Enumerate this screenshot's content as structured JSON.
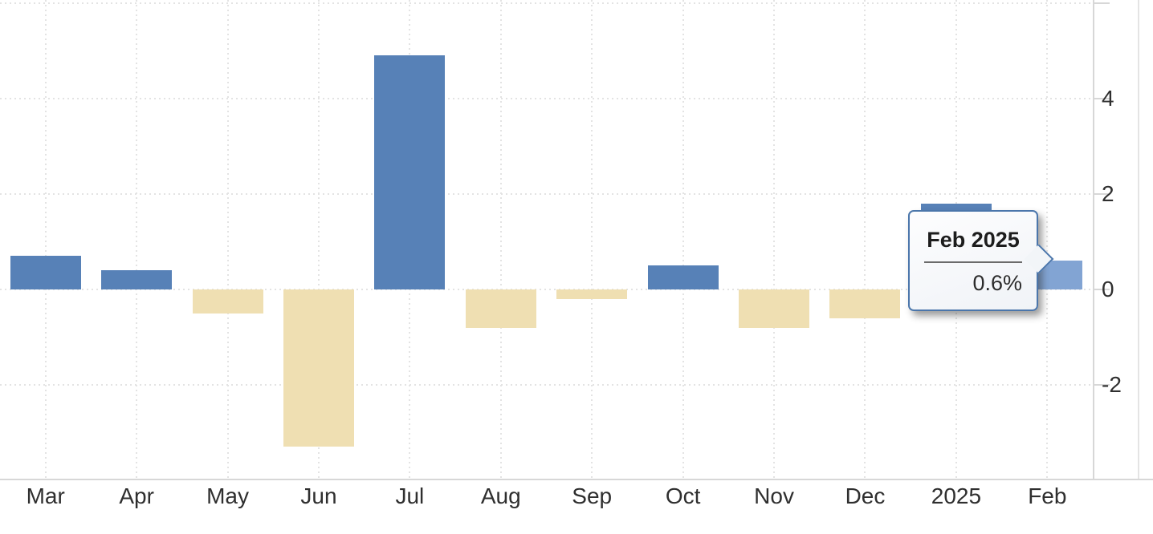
{
  "chart_data": {
    "type": "bar",
    "title": "",
    "xlabel": "",
    "ylabel": "",
    "categories": [
      "Mar",
      "Apr",
      "May",
      "Jun",
      "Jul",
      "Aug",
      "Sep",
      "Oct",
      "Nov",
      "Dec",
      "2025",
      "Feb"
    ],
    "values": [
      0.7,
      0.4,
      -0.5,
      -3.3,
      4.9,
      -0.8,
      -0.2,
      0.5,
      -0.8,
      -0.6,
      1.8,
      0.6
    ],
    "value_suffix": "%",
    "y_ticks": [
      {
        "value": 6,
        "label": ""
      },
      {
        "value": 4,
        "label": "4"
      },
      {
        "value": 2,
        "label": "2"
      },
      {
        "value": 0,
        "label": "0"
      },
      {
        "value": -2,
        "label": "-2"
      }
    ],
    "ylim": [
      -3.97,
      6.07
    ],
    "grid": "dotted",
    "legend_position": "none",
    "highlight_index": 11,
    "colors": {
      "positive_bar": "#5781b7",
      "negative_bar": "#efdfb2",
      "highlighted_bar": "#82a4d3",
      "tooltip_border": "#4b76ab",
      "grid_line": "#e3e3e3",
      "axis_line": "#d7d7d7",
      "tick_label": "#2f2f2f"
    }
  },
  "tooltip": {
    "title": "Feb 2025",
    "value": "0.6%"
  }
}
